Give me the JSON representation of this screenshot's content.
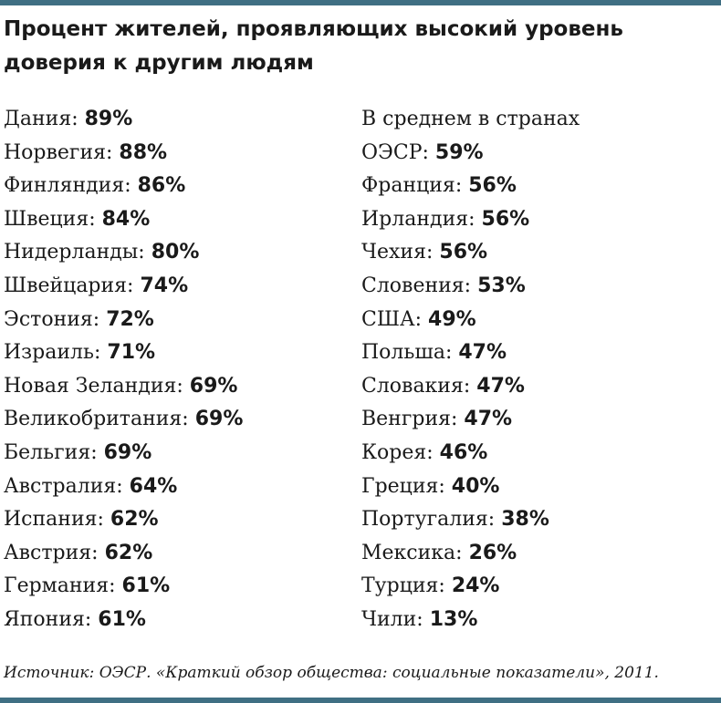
{
  "title": "Процент жителей, проявляющих высокий уровень доверия к другим людям",
  "left_column": [
    {
      "label": "Дания:",
      "value": "89%"
    },
    {
      "label": "Норвегия:",
      "value": "88%"
    },
    {
      "label": "Финляндия:",
      "value": "86%"
    },
    {
      "label": "Швеция:",
      "value": "84%"
    },
    {
      "label": "Нидерланды:",
      "value": "80%"
    },
    {
      "label": "Швейцария:",
      "value": "74%"
    },
    {
      "label": "Эстония:",
      "value": "72%"
    },
    {
      "label": "Израиль:",
      "value": "71%"
    },
    {
      "label": "Новая Зеландия:",
      "value": "69%"
    },
    {
      "label": "Великобритания:",
      "value": "69%"
    },
    {
      "label": "Бельгия:",
      "value": "69%"
    },
    {
      "label": "Австралия:",
      "value": "64%"
    },
    {
      "label": "Испания:",
      "value": "62%"
    },
    {
      "label": "Австрия:",
      "value": "62%"
    },
    {
      "label": "Германия:",
      "value": "61%"
    },
    {
      "label": "Япония:",
      "value": "61%"
    }
  ],
  "right_column": [
    {
      "label": "В среднем в странах",
      "value": ""
    },
    {
      "label": "ОЭСР:",
      "value": "59%"
    },
    {
      "label": "Франция:",
      "value": "56%"
    },
    {
      "label": "Ирландия:",
      "value": "56%"
    },
    {
      "label": "Чехия:",
      "value": "56%"
    },
    {
      "label": "Словения:",
      "value": "53%"
    },
    {
      "label": "США:",
      "value": "49%"
    },
    {
      "label": "Польша:",
      "value": "47%"
    },
    {
      "label": "Словакия:",
      "value": "47%"
    },
    {
      "label": "Венгрия:",
      "value": "47%"
    },
    {
      "label": "Корея:",
      "value": "46%"
    },
    {
      "label": "Греция:",
      "value": "40%"
    },
    {
      "label": "Португалия:",
      "value": "38%"
    },
    {
      "label": "Мексика:",
      "value": "26%"
    },
    {
      "label": "Турция:",
      "value": "24%"
    },
    {
      "label": "Чили:",
      "value": "13%"
    }
  ],
  "source": "Источник: ОЭСР. «Краткий обзор общества: социальные показатели», 2011."
}
